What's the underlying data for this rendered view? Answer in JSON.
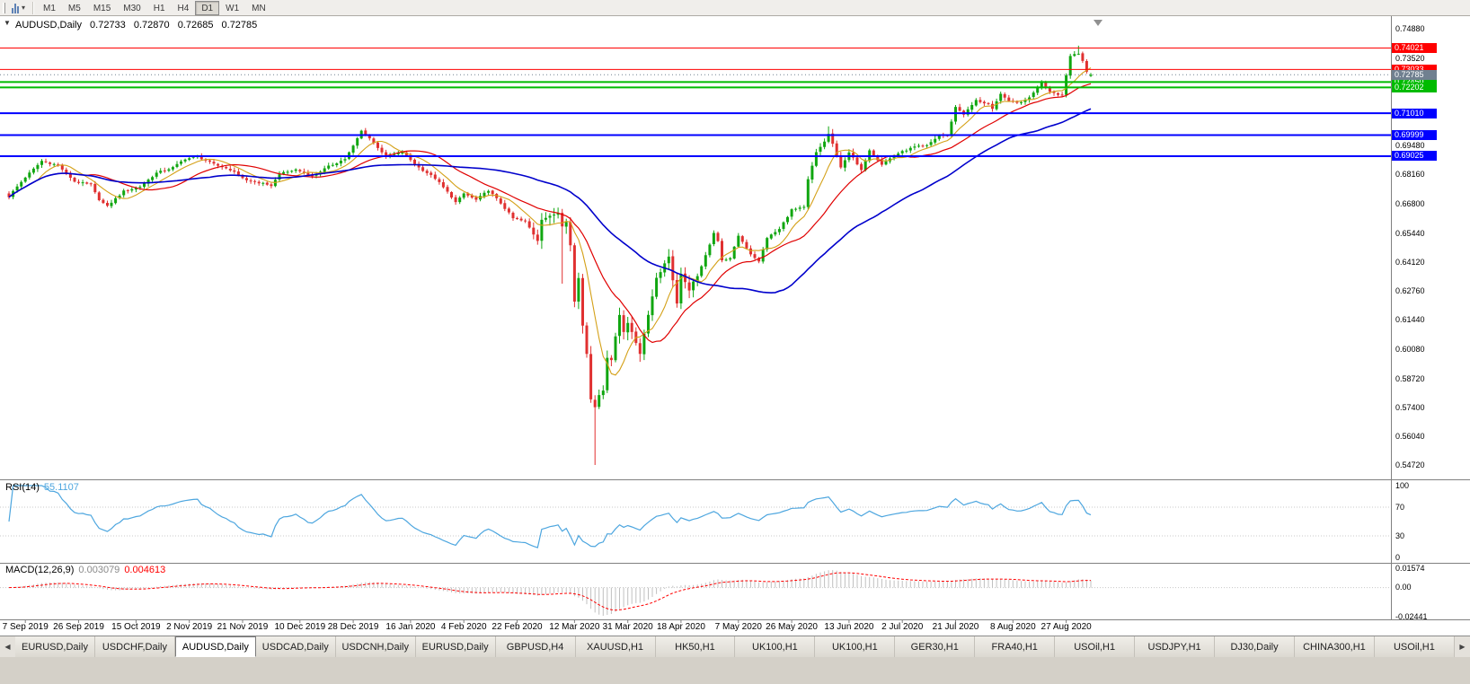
{
  "toolbar": {
    "timeframes": [
      {
        "label": "M1",
        "active": false
      },
      {
        "label": "M5",
        "active": false
      },
      {
        "label": "M15",
        "active": false
      },
      {
        "label": "M30",
        "active": false
      },
      {
        "label": "H1",
        "active": false
      },
      {
        "label": "H4",
        "active": false
      },
      {
        "label": "D1",
        "active": true
      },
      {
        "label": "W1",
        "active": false
      },
      {
        "label": "MN",
        "active": false
      }
    ]
  },
  "chart_header": {
    "symbol": "AUDUSD,Daily",
    "open": "0.72733",
    "high": "0.72870",
    "low": "0.72685",
    "close": "0.72785",
    "one_click_arrow": "▼"
  },
  "price_axis": {
    "plain_labels": [
      "0.74880",
      "0.73520",
      "0.69480",
      "0.68160",
      "0.66800",
      "0.65440",
      "0.64120",
      "0.62760",
      "0.61440",
      "0.60080",
      "0.58720",
      "0.57400",
      "0.56040",
      "0.54720"
    ]
  },
  "levels": [
    {
      "price": 0.74021,
      "label": "0.74021",
      "color": "#FF0000",
      "width": 1
    },
    {
      "price": 0.73033,
      "label": "0.73033",
      "color": "#FF0000",
      "width": 1
    },
    {
      "price": 0.7245,
      "label": "0.72450",
      "color": "#00BB00",
      "width": 2
    },
    {
      "price": 0.72202,
      "label": "0.72202",
      "color": "#00BB00",
      "width": 2
    },
    {
      "price": 0.7101,
      "label": "0.71010",
      "color": "#0000FF",
      "width": 2
    },
    {
      "price": 0.69999,
      "label": "0.69999",
      "color": "#0000FF",
      "width": 2
    },
    {
      "price": 0.69025,
      "label": "0.69025",
      "color": "#0000FF",
      "width": 2
    }
  ],
  "bid": {
    "price": 0.72785,
    "label": "0.72785",
    "color": "#708090"
  },
  "indicators": {
    "rsi": {
      "name": "RSI(14)",
      "value": "55.1107",
      "scale": [
        "100",
        "70",
        "30",
        "0"
      ],
      "level_lines": [
        70,
        30
      ],
      "color": "#4DA6DF"
    },
    "macd": {
      "name": "MACD(12,26,9)",
      "value_main": "0.003079",
      "value_signal": "0.004613",
      "scale": [
        "0.01574",
        "0.00",
        "-0.02441"
      ],
      "hist_color": "#C0C0C0",
      "signal_color": "#FF0000"
    }
  },
  "time_axis": [
    "7 Sep 2019",
    "26 Sep 2019",
    "15 Oct 2019",
    "2 Nov 2019",
    "21 Nov 2019",
    "10 Dec 2019",
    "28 Dec 2019",
    "16 Jan 2020",
    "4 Feb 2020",
    "22 Feb 2020",
    "12 Mar 2020",
    "31 Mar 2020",
    "18 Apr 2020",
    "7 May 2020",
    "26 May 2020",
    "13 Jun 2020",
    "2 Jul 2020",
    "21 Jul 2020",
    "8 Aug 2020",
    "27 Aug 2020"
  ],
  "tabs": {
    "left_arrow": "◀",
    "right_arrow": "▶",
    "items": [
      {
        "label": "EURUSD,Daily",
        "active": false
      },
      {
        "label": "USDCHF,Daily",
        "active": false
      },
      {
        "label": "AUDUSD,Daily",
        "active": true
      },
      {
        "label": "USDCAD,Daily",
        "active": false
      },
      {
        "label": "USDCNH,Daily",
        "active": false
      },
      {
        "label": "EURUSD,Daily",
        "active": false
      },
      {
        "label": "GBPUSD,H4",
        "active": false
      },
      {
        "label": "XAUUSD,H1",
        "active": false
      },
      {
        "label": "HK50,H1",
        "active": false
      },
      {
        "label": "UK100,H1",
        "active": false
      },
      {
        "label": "UK100,H1",
        "active": false
      },
      {
        "label": "GER30,H1",
        "active": false
      },
      {
        "label": "FRA40,H1",
        "active": false
      },
      {
        "label": "USOil,H1",
        "active": false
      },
      {
        "label": "USDJPY,H1",
        "active": false
      },
      {
        "label": "DJ30,Daily",
        "active": false
      },
      {
        "label": "CHINA300,H1",
        "active": false
      },
      {
        "label": "USOil,H1",
        "active": false
      }
    ]
  },
  "chart_data": {
    "type": "candlestick",
    "symbol": "AUDUSD",
    "timeframe": "Daily",
    "x_range": [
      "2 Sep 2019",
      "4 Sep 2020"
    ],
    "y_visible_range": [
      0.5438,
      0.7533
    ],
    "candle_count": 265,
    "first_open": 0.673,
    "candle_up_color": "#10A610",
    "candle_down_color": "#E03030",
    "close_anchors": [
      [
        0,
        0.6718
      ],
      [
        4,
        0.6805
      ],
      [
        8,
        0.688
      ],
      [
        12,
        0.686
      ],
      [
        16,
        0.6785
      ],
      [
        20,
        0.677
      ],
      [
        22,
        0.67
      ],
      [
        24,
        0.6672
      ],
      [
        28,
        0.674
      ],
      [
        32,
        0.6762
      ],
      [
        36,
        0.6825
      ],
      [
        40,
        0.685
      ],
      [
        43,
        0.689
      ],
      [
        46,
        0.69
      ],
      [
        50,
        0.6865
      ],
      [
        54,
        0.684
      ],
      [
        58,
        0.679
      ],
      [
        62,
        0.6775
      ],
      [
        64,
        0.6765
      ],
      [
        66,
        0.682
      ],
      [
        70,
        0.684
      ],
      [
        74,
        0.681
      ],
      [
        78,
        0.6855
      ],
      [
        82,
        0.689
      ],
      [
        84,
        0.695
      ],
      [
        86,
        0.702
      ],
      [
        88,
        0.6985
      ],
      [
        92,
        0.69
      ],
      [
        96,
        0.692
      ],
      [
        100,
        0.685
      ],
      [
        104,
        0.68
      ],
      [
        108,
        0.6715
      ],
      [
        109,
        0.669
      ],
      [
        111,
        0.673
      ],
      [
        114,
        0.67
      ],
      [
        117,
        0.6745
      ],
      [
        120,
        0.6685
      ],
      [
        123,
        0.6615
      ],
      [
        126,
        0.66
      ],
      [
        129,
        0.6515
      ],
      [
        130,
        0.661
      ],
      [
        132,
        0.6625
      ],
      [
        134,
        0.664
      ],
      [
        135,
        0.658
      ],
      [
        136,
        0.66
      ],
      [
        137,
        0.649
      ],
      [
        138,
        0.623
      ],
      [
        139,
        0.634
      ],
      [
        140,
        0.612
      ],
      [
        141,
        0.599
      ],
      [
        142,
        0.578
      ],
      [
        143,
        0.574
      ],
      [
        144,
        0.58
      ],
      [
        145,
        0.582
      ],
      [
        146,
        0.597
      ],
      [
        147,
        0.596
      ],
      [
        148,
        0.607
      ],
      [
        149,
        0.617
      ],
      [
        150,
        0.609
      ],
      [
        151,
        0.613
      ],
      [
        152,
        0.609
      ],
      [
        154,
        0.599
      ],
      [
        156,
        0.617
      ],
      [
        158,
        0.634
      ],
      [
        161,
        0.644
      ],
      [
        163,
        0.622
      ],
      [
        164,
        0.636
      ],
      [
        166,
        0.628
      ],
      [
        169,
        0.639
      ],
      [
        172,
        0.655
      ],
      [
        173,
        0.651
      ],
      [
        174,
        0.642
      ],
      [
        176,
        0.643
      ],
      [
        178,
        0.6535
      ],
      [
        181,
        0.645
      ],
      [
        183,
        0.6415
      ],
      [
        185,
        0.6525
      ],
      [
        188,
        0.6565
      ],
      [
        191,
        0.6655
      ],
      [
        194,
        0.6665
      ],
      [
        195,
        0.6795
      ],
      [
        197,
        0.692
      ],
      [
        199,
        0.697
      ],
      [
        200,
        0.7005
      ],
      [
        201,
        0.696
      ],
      [
        203,
        0.685
      ],
      [
        205,
        0.692
      ],
      [
        208,
        0.6835
      ],
      [
        210,
        0.693
      ],
      [
        213,
        0.6865
      ],
      [
        216,
        0.6905
      ],
      [
        218,
        0.6925
      ],
      [
        221,
        0.6945
      ],
      [
        224,
        0.695
      ],
      [
        227,
        0.7
      ],
      [
        229,
        0.6995
      ],
      [
        231,
        0.713
      ],
      [
        233,
        0.7095
      ],
      [
        236,
        0.716
      ],
      [
        239,
        0.7143
      ],
      [
        240,
        0.712
      ],
      [
        242,
        0.719
      ],
      [
        244,
        0.7157
      ],
      [
        247,
        0.715
      ],
      [
        249,
        0.7175
      ],
      [
        252,
        0.7245
      ],
      [
        254,
        0.72
      ],
      [
        257,
        0.7185
      ],
      [
        259,
        0.7365
      ],
      [
        260,
        0.7375
      ],
      [
        261,
        0.7376
      ],
      [
        262,
        0.7342
      ],
      [
        263,
        0.7293
      ],
      [
        264,
        0.72785
      ]
    ],
    "overrides": [
      {
        "i": 135,
        "l": 0.6313
      },
      {
        "i": 143,
        "l": 0.5475
      },
      {
        "i": 200,
        "h": 0.704
      },
      {
        "i": 261,
        "h": 0.7413
      },
      {
        "i": 264,
        "o": 0.72733,
        "h": 0.7287,
        "l": 0.72685,
        "c": 0.72785
      }
    ],
    "ma": [
      {
        "period": 8,
        "color": "#D4A017",
        "width": 1.1
      },
      {
        "period": 20,
        "color": "#E00000",
        "width": 1.2
      },
      {
        "period": 50,
        "color": "#0000CC",
        "width": 1.6
      }
    ]
  }
}
